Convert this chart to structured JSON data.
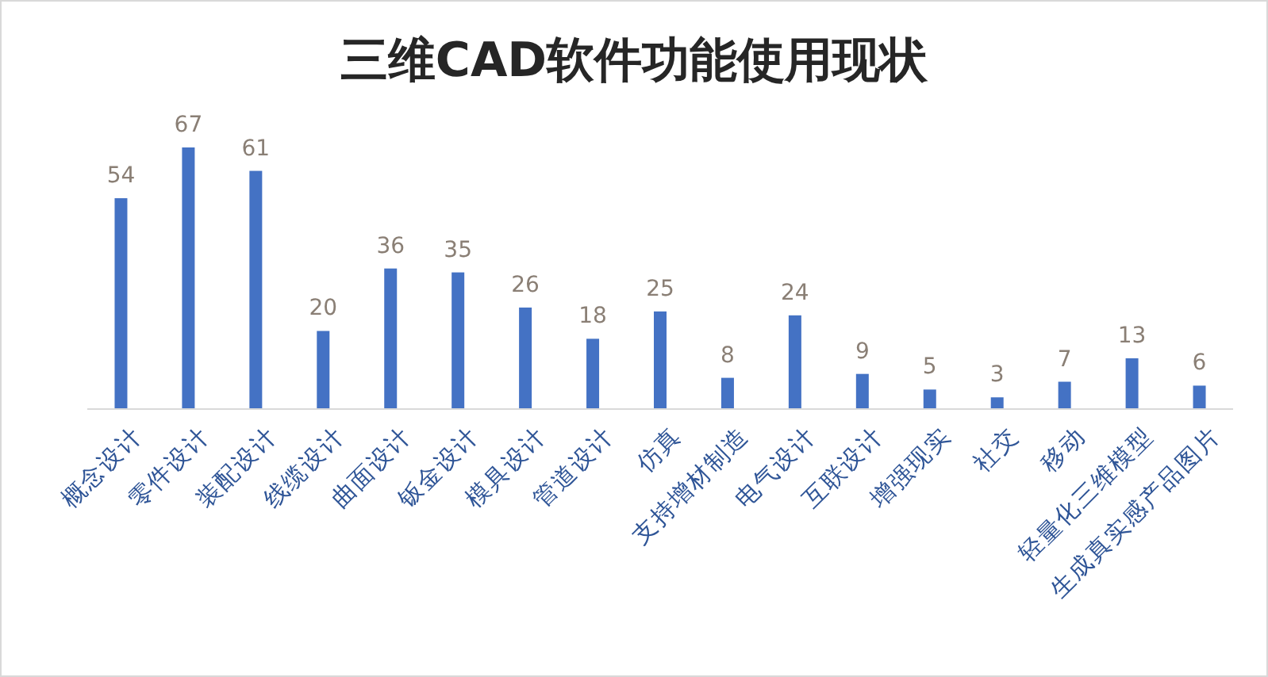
{
  "chart_data": {
    "type": "bar",
    "title": "三维CAD软件功能使用现状",
    "categories": [
      "概念设计",
      "零件设计",
      "装配设计",
      "线缆设计",
      "曲面设计",
      "钣金设计",
      "模具设计",
      "管道设计",
      "仿真",
      "支持增材制造",
      "电气设计",
      "互联设计",
      "增强现实",
      "社交",
      "移动",
      "轻量化三维模型",
      "生成真实感产品图片"
    ],
    "values": [
      54,
      67,
      61,
      20,
      36,
      35,
      26,
      18,
      25,
      8,
      24,
      9,
      5,
      3,
      7,
      13,
      6
    ],
    "color": "#4472c4",
    "data_labels": true
  }
}
